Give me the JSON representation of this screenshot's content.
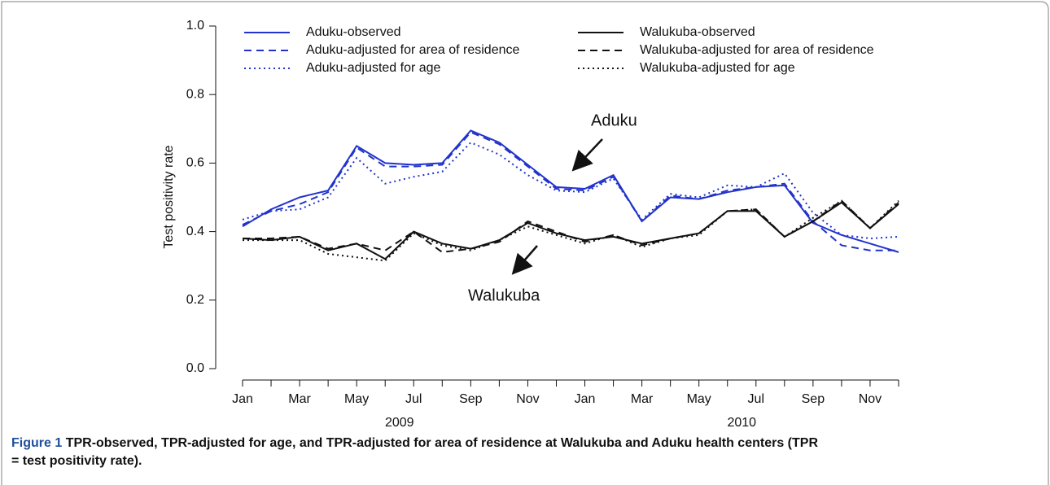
{
  "chart_data": {
    "type": "line",
    "ylabel": "Test positivity rate",
    "categories": [
      "Jan",
      null,
      "Mar",
      null,
      "May",
      null,
      "Jul",
      null,
      "Sep",
      null,
      "Nov",
      null,
      "Jan",
      null,
      "Mar",
      null,
      "May",
      null,
      "Jul",
      null,
      "Sep",
      null,
      "Nov",
      null
    ],
    "x_group_labels": [
      "2009",
      "2010"
    ],
    "ylim": [
      0,
      1
    ],
    "yticks": [
      {
        "value": 0,
        "label": "0.0"
      },
      0.2,
      0.4,
      0.6,
      0.8,
      {
        "value": 1,
        "label": "1.0"
      }
    ],
    "legend": "top",
    "series": [
      {
        "name": "Aduku-observed",
        "color": "#2233cc",
        "dash": "solid",
        "values": [
          0.415,
          0.465,
          0.5,
          0.52,
          0.65,
          0.6,
          0.595,
          0.6,
          0.695,
          0.66,
          0.595,
          0.53,
          0.525,
          0.565,
          0.43,
          0.5,
          0.495,
          0.515,
          0.53,
          0.535,
          0.425,
          0.39,
          0.365,
          0.34
        ]
      },
      {
        "name": "Aduku-adjusted for area of residence",
        "color": "#2233cc",
        "dash": "dashed",
        "values": [
          0.42,
          0.46,
          0.48,
          0.515,
          0.645,
          0.59,
          0.59,
          0.595,
          0.69,
          0.655,
          0.59,
          0.525,
          0.52,
          0.56,
          0.43,
          0.505,
          0.495,
          0.52,
          0.53,
          0.54,
          0.43,
          0.36,
          0.345,
          0.345
        ]
      },
      {
        "name": "Aduku-adjusted for age",
        "color": "#2233cc",
        "dash": "dotted",
        "values": [
          0.435,
          0.46,
          0.465,
          0.5,
          0.615,
          0.54,
          0.56,
          0.575,
          0.66,
          0.625,
          0.565,
          0.52,
          0.515,
          0.555,
          0.435,
          0.51,
          0.5,
          0.535,
          0.53,
          0.57,
          0.455,
          0.39,
          0.38,
          0.385
        ]
      },
      {
        "name": "Walukuba-observed",
        "color": "#111111",
        "dash": "solid",
        "values": [
          0.38,
          0.375,
          0.385,
          0.345,
          0.365,
          0.32,
          0.4,
          0.365,
          0.35,
          0.375,
          0.425,
          0.395,
          0.375,
          0.385,
          0.365,
          0.38,
          0.395,
          0.46,
          0.46,
          0.385,
          0.43,
          0.485,
          0.41,
          0.48
        ]
      },
      {
        "name": "Walukuba-adjusted for area of residence",
        "color": "#111111",
        "dash": "dashed",
        "values": [
          0.38,
          0.38,
          0.385,
          0.35,
          0.365,
          0.345,
          0.4,
          0.34,
          0.35,
          0.37,
          0.43,
          0.4,
          0.37,
          0.39,
          0.36,
          0.38,
          0.395,
          0.46,
          0.465,
          0.385,
          0.43,
          0.49,
          0.41,
          0.485
        ]
      },
      {
        "name": "Walukuba-adjusted for age",
        "color": "#111111",
        "dash": "dotted",
        "values": [
          0.375,
          0.375,
          0.375,
          0.335,
          0.325,
          0.315,
          0.395,
          0.36,
          0.345,
          0.375,
          0.415,
          0.39,
          0.365,
          0.39,
          0.355,
          0.38,
          0.39,
          0.46,
          0.465,
          0.385,
          0.44,
          0.49,
          0.41,
          0.49
        ]
      }
    ],
    "annotations": [
      "Aduku",
      "Walukuba"
    ]
  },
  "caption": {
    "label": "Figure 1",
    "text": "TPR-observed, TPR-adjusted for age, and TPR-adjusted for area of residence at Walukuba and Aduku health centers (TPR = test positivity rate)."
  }
}
